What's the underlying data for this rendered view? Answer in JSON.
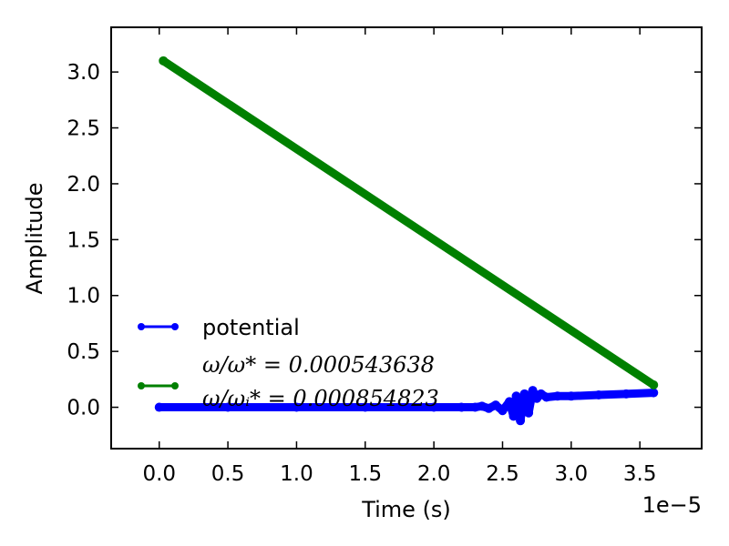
{
  "chart_data": {
    "type": "line",
    "xlabel": "Time (s)",
    "ylabel": "Amplitude",
    "x_offset_label": "1e−5",
    "x_scale": 1e-05,
    "xlim": [
      -0.35,
      3.95
    ],
    "ylim": [
      -0.37,
      3.4
    ],
    "x_ticks": [
      0.0,
      0.5,
      1.0,
      1.5,
      2.0,
      2.5,
      3.0,
      3.5
    ],
    "x_tick_labels": [
      "0.0",
      "0.5",
      "1.0",
      "1.5",
      "2.0",
      "2.5",
      "3.0",
      "3.5"
    ],
    "y_ticks": [
      0.0,
      0.5,
      1.0,
      1.5,
      2.0,
      2.5,
      3.0
    ],
    "y_tick_labels": [
      "0.0",
      "0.5",
      "1.0",
      "1.5",
      "2.0",
      "2.5",
      "3.0"
    ],
    "grid": false,
    "legend_position": "lower-left",
    "series": [
      {
        "name": "potential",
        "color": "#0000ff",
        "x": [
          0.0,
          0.5,
          1.0,
          1.5,
          2.0,
          2.2,
          2.3,
          2.35,
          2.4,
          2.45,
          2.5,
          2.55,
          2.58,
          2.6,
          2.63,
          2.66,
          2.69,
          2.72,
          2.75,
          2.78,
          2.82,
          2.9,
          3.0,
          3.2,
          3.4,
          3.6
        ],
        "y": [
          0.0,
          0.0,
          0.0,
          0.0,
          0.0,
          0.0,
          0.0,
          0.01,
          -0.01,
          0.02,
          -0.03,
          0.05,
          -0.08,
          0.1,
          -0.12,
          0.12,
          -0.05,
          0.15,
          0.08,
          0.12,
          0.09,
          0.1,
          0.1,
          0.11,
          0.12,
          0.13
        ]
      },
      {
        "name": "ω/ω* = 0.000543638",
        "color": "#008000",
        "x": [
          0.03,
          3.6
        ],
        "y": [
          3.1,
          0.2
        ]
      }
    ],
    "legend": [
      {
        "label": "potential",
        "color": "#0000ff"
      },
      {
        "label": "ω/ω* = 0.000543638",
        "color": "#008000"
      }
    ],
    "legend_extra_line": "ω/ωᵢ* = 0.000854823"
  }
}
